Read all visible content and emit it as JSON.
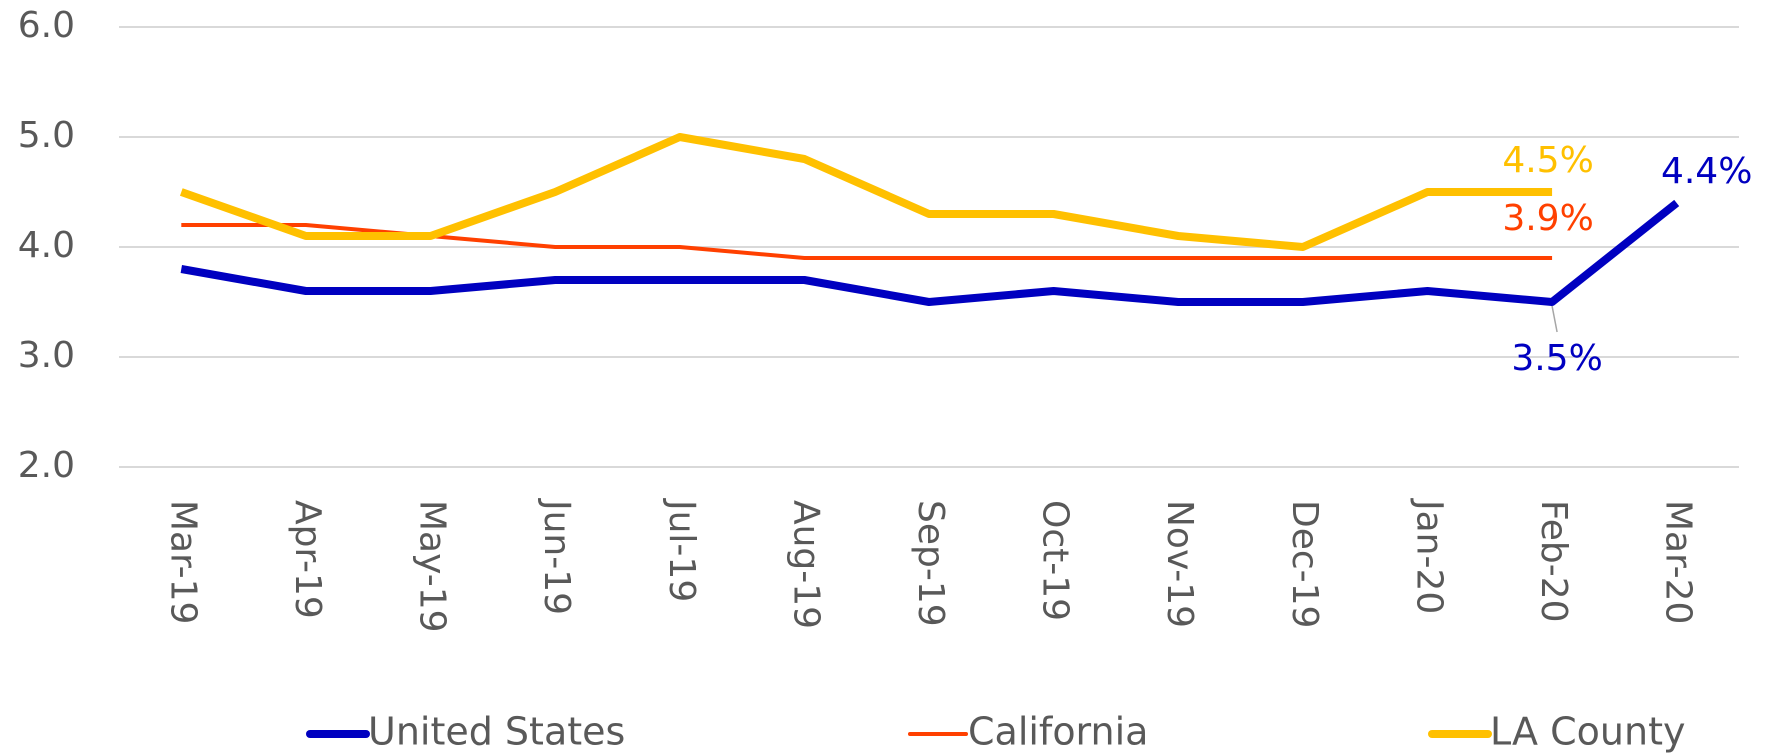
{
  "chart_data": {
    "type": "line",
    "categories": [
      "Mar-19",
      "Apr-19",
      "May-19",
      "Jun-19",
      "Jul-19",
      "Aug-19",
      "Sep-19",
      "Oct-19",
      "Nov-19",
      "Dec-19",
      "Jan-20",
      "Feb-20",
      "Mar-20"
    ],
    "series": [
      {
        "name": "United States",
        "color": "#0000c0",
        "values": [
          3.8,
          3.6,
          3.6,
          3.7,
          3.7,
          3.7,
          3.5,
          3.6,
          3.5,
          3.5,
          3.6,
          3.5,
          4.4
        ],
        "value_labels": [
          null,
          null,
          null,
          null,
          null,
          null,
          null,
          null,
          null,
          null,
          null,
          "3.5%",
          "4.4%"
        ]
      },
      {
        "name": "California",
        "color": "#ff4000",
        "values": [
          4.2,
          4.2,
          4.1,
          4.0,
          4.0,
          3.9,
          3.9,
          3.9,
          3.9,
          3.9,
          3.9,
          3.9,
          null
        ],
        "value_labels": [
          null,
          null,
          null,
          null,
          null,
          null,
          null,
          null,
          null,
          null,
          null,
          "3.9%",
          null
        ]
      },
      {
        "name": "LA County",
        "color": "#ffc000",
        "values": [
          4.5,
          4.1,
          4.1,
          4.5,
          5.0,
          4.8,
          4.3,
          4.3,
          4.1,
          4.0,
          4.5,
          4.5,
          null
        ],
        "value_labels": [
          null,
          null,
          null,
          null,
          null,
          null,
          null,
          null,
          null,
          null,
          null,
          "4.5%",
          null
        ]
      }
    ],
    "ylim": [
      2,
      6
    ],
    "yticks": [
      {
        "value": 2,
        "label": "2.0"
      },
      {
        "value": 3,
        "label": "3.0"
      },
      {
        "value": 4,
        "label": "4.0"
      },
      {
        "value": 5,
        "label": "5.0"
      },
      {
        "value": 6,
        "label": "6.0"
      }
    ],
    "grid": true,
    "legend": "bottom"
  }
}
